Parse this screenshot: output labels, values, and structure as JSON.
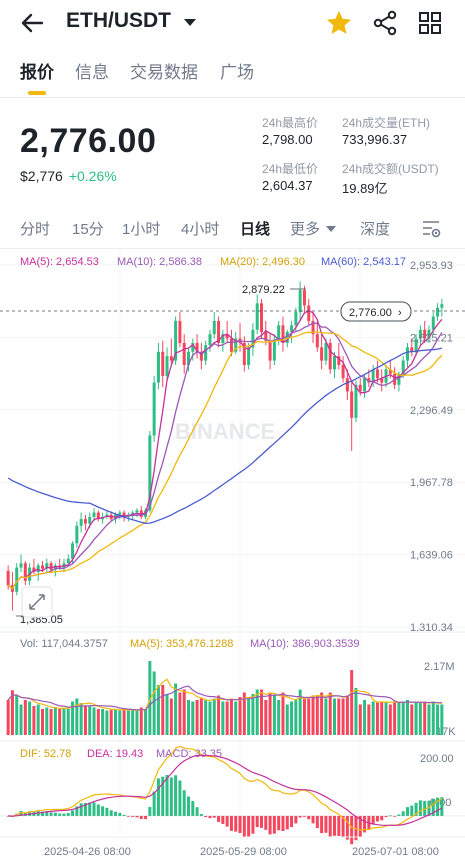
{
  "header": {
    "pair": "ETH/USDT",
    "icons": [
      "back-arrow-icon",
      "caret-down-icon",
      "star-icon",
      "share-icon",
      "grid-icon"
    ],
    "star_color": "#f0b90b"
  },
  "tabs": [
    "报价",
    "信息",
    "交易数据",
    "广场"
  ],
  "active_tab": "报价",
  "price": {
    "last": "2,776.00",
    "usd": "$2,776",
    "change": "+0.26%"
  },
  "stats": {
    "high_label": "24h最高价",
    "high": "2,798.00",
    "vol_label": "24h成交量(ETH)",
    "vol": "733,996.37",
    "low_label": "24h最低价",
    "low": "2,604.37",
    "turnover_label": "24h成交额(USDT)",
    "turnover": "19.89亿"
  },
  "intervals": [
    "分时",
    "15分",
    "1小时",
    "4小时",
    "日线",
    "更多",
    "深度"
  ],
  "active_interval": "日线",
  "colors": {
    "up": "#2ebd85",
    "down": "#f6465d",
    "ma5": "#c7309d",
    "ma10": "#9b59b6",
    "ma20": "#f0b90b",
    "ma60": "#4a5ccf",
    "accent": "#f0b90b"
  },
  "chart_data": {
    "type": "candlestick",
    "indicators": {
      "ma5": "MA(5): 2,654.53",
      "ma10": "MA(10): 2,586.38",
      "ma20": "MA(20): 2,496.30",
      "ma60": "MA(60): 2,543.17"
    },
    "y_ticks": [
      "2,953.93",
      "2,625.21",
      "2,296.49",
      "1,967.78",
      "1,639.06",
      "1,310.34"
    ],
    "ylim": [
      1310.34,
      2953.93
    ],
    "current_price_label": "2,776.00",
    "current_price": 2776.0,
    "max_label": "2,879.22",
    "max_value": 2879.22,
    "min_label": "1,385.05",
    "min_value": 1385.05,
    "watermark": "BINANCE",
    "volume": {
      "label": "Vol: 117,044.3757",
      "ma5": "MA(5): 353,476.1288",
      "ma10": "MA(10): 386,903.3539",
      "y_ticks": [
        "2.17M",
        "17K"
      ],
      "ylim": [
        0,
        2170000
      ]
    },
    "macd": {
      "dif": "DIF: 52.78",
      "dea": "DEA: 19.43",
      "macd": "MACD: 33.35",
      "y_ticks": [
        "200.00",
        "0.00"
      ],
      "ylim": [
        -60,
        200
      ]
    },
    "x_labels": [
      "2025-04-26 08:00",
      "2025-05-29 08:00",
      "2025-07-01 08:00"
    ],
    "candles": [
      [
        1565,
        1590,
        1480,
        1500
      ],
      [
        1500,
        1560,
        1385,
        1470
      ],
      [
        1470,
        1600,
        1455,
        1580
      ],
      [
        1580,
        1640,
        1560,
        1600
      ],
      [
        1600,
        1610,
        1500,
        1520
      ],
      [
        1520,
        1600,
        1500,
        1580
      ],
      [
        1580,
        1620,
        1550,
        1560
      ],
      [
        1560,
        1600,
        1520,
        1590
      ],
      [
        1590,
        1610,
        1560,
        1575
      ],
      [
        1575,
        1620,
        1560,
        1600
      ],
      [
        1600,
        1610,
        1560,
        1570
      ],
      [
        1570,
        1600,
        1540,
        1590
      ],
      [
        1590,
        1620,
        1570,
        1580
      ],
      [
        1580,
        1620,
        1560,
        1600
      ],
      [
        1600,
        1640,
        1590,
        1620
      ],
      [
        1620,
        1700,
        1600,
        1690
      ],
      [
        1690,
        1790,
        1670,
        1770
      ],
      [
        1770,
        1830,
        1740,
        1800
      ],
      [
        1800,
        1820,
        1750,
        1780
      ],
      [
        1780,
        1830,
        1760,
        1810
      ],
      [
        1810,
        1850,
        1790,
        1830
      ],
      [
        1830,
        1840,
        1790,
        1800
      ],
      [
        1800,
        1830,
        1780,
        1810
      ],
      [
        1810,
        1840,
        1800,
        1820
      ],
      [
        1820,
        1835,
        1790,
        1800
      ],
      [
        1800,
        1830,
        1780,
        1820
      ],
      [
        1820,
        1840,
        1800,
        1830
      ],
      [
        1830,
        1840,
        1790,
        1810
      ],
      [
        1810,
        1830,
        1790,
        1820
      ],
      [
        1820,
        1840,
        1800,
        1830
      ],
      [
        1830,
        1850,
        1810,
        1840
      ],
      [
        1840,
        1860,
        1800,
        1810
      ],
      [
        1810,
        1850,
        1800,
        1840
      ],
      [
        1840,
        2200,
        1830,
        2180
      ],
      [
        2180,
        2450,
        2150,
        2420
      ],
      [
        2420,
        2600,
        2390,
        2560
      ],
      [
        2560,
        2610,
        2400,
        2450
      ],
      [
        2450,
        2580,
        2430,
        2540
      ],
      [
        2540,
        2620,
        2500,
        2520
      ],
      [
        2520,
        2720,
        2500,
        2700
      ],
      [
        2700,
        2740,
        2580,
        2600
      ],
      [
        2600,
        2640,
        2460,
        2500
      ],
      [
        2500,
        2580,
        2470,
        2560
      ],
      [
        2560,
        2620,
        2520,
        2600
      ],
      [
        2600,
        2640,
        2530,
        2560
      ],
      [
        2560,
        2600,
        2480,
        2520
      ],
      [
        2520,
        2610,
        2500,
        2590
      ],
      [
        2590,
        2660,
        2560,
        2640
      ],
      [
        2640,
        2740,
        2620,
        2700
      ],
      [
        2700,
        2720,
        2580,
        2600
      ],
      [
        2600,
        2660,
        2560,
        2640
      ],
      [
        2640,
        2700,
        2600,
        2620
      ],
      [
        2620,
        2660,
        2540,
        2560
      ],
      [
        2560,
        2650,
        2550,
        2620
      ],
      [
        2620,
        2690,
        2560,
        2600
      ],
      [
        2600,
        2630,
        2470,
        2500
      ],
      [
        2500,
        2600,
        2480,
        2580
      ],
      [
        2580,
        2690,
        2540,
        2660
      ],
      [
        2660,
        2820,
        2640,
        2780
      ],
      [
        2780,
        2800,
        2620,
        2650
      ],
      [
        2650,
        2700,
        2590,
        2610
      ],
      [
        2610,
        2640,
        2480,
        2520
      ],
      [
        2520,
        2640,
        2500,
        2610
      ],
      [
        2610,
        2700,
        2590,
        2680
      ],
      [
        2680,
        2720,
        2560,
        2600
      ],
      [
        2600,
        2660,
        2580,
        2650
      ],
      [
        2650,
        2700,
        2600,
        2680
      ],
      [
        2680,
        2760,
        2650,
        2740
      ],
      [
        2740,
        2879.22,
        2700,
        2840
      ],
      [
        2840,
        2860,
        2740,
        2770
      ],
      [
        2770,
        2800,
        2680,
        2700
      ],
      [
        2700,
        2740,
        2600,
        2640
      ],
      [
        2640,
        2700,
        2560,
        2580
      ],
      [
        2580,
        2640,
        2480,
        2520
      ],
      [
        2520,
        2620,
        2500,
        2600
      ],
      [
        2600,
        2620,
        2460,
        2480
      ],
      [
        2480,
        2560,
        2440,
        2540
      ],
      [
        2540,
        2600,
        2480,
        2500
      ],
      [
        2500,
        2540,
        2420,
        2440
      ],
      [
        2440,
        2480,
        2340,
        2380
      ],
      [
        2380,
        2420,
        2110,
        2260
      ],
      [
        2260,
        2430,
        2240,
        2410
      ],
      [
        2410,
        2440,
        2360,
        2380
      ],
      [
        2380,
        2460,
        2350,
        2440
      ],
      [
        2440,
        2480,
        2400,
        2420
      ],
      [
        2420,
        2500,
        2400,
        2480
      ],
      [
        2480,
        2520,
        2420,
        2440
      ],
      [
        2440,
        2480,
        2380,
        2420
      ],
      [
        2420,
        2500,
        2400,
        2480
      ],
      [
        2480,
        2520,
        2440,
        2460
      ],
      [
        2460,
        2490,
        2390,
        2410
      ],
      [
        2410,
        2470,
        2380,
        2460
      ],
      [
        2460,
        2540,
        2440,
        2520
      ],
      [
        2520,
        2600,
        2490,
        2580
      ],
      [
        2580,
        2620,
        2540,
        2560
      ],
      [
        2560,
        2640,
        2540,
        2620
      ],
      [
        2620,
        2680,
        2590,
        2660
      ],
      [
        2660,
        2700,
        2600,
        2620
      ],
      [
        2620,
        2680,
        2600,
        2660
      ],
      [
        2660,
        2740,
        2640,
        2720
      ],
      [
        2720,
        2780,
        2700,
        2760
      ],
      [
        2760,
        2800,
        2720,
        2776
      ]
    ]
  }
}
